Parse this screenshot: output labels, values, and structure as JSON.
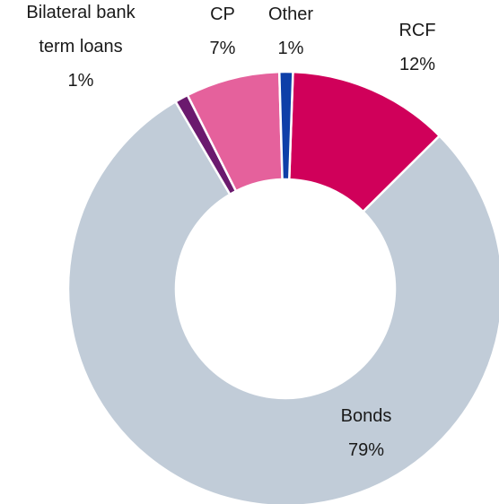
{
  "chart_data": {
    "type": "pie",
    "donut": true,
    "legend": "none",
    "slices": [
      {
        "label": [
          "RCF"
        ],
        "value": 12,
        "value_label": "12%",
        "color": "#d0005a"
      },
      {
        "label": [
          "Bonds"
        ],
        "value": 79,
        "value_label": "79%",
        "color": "#c1ccd8"
      },
      {
        "label": [
          "Bilateral bank",
          "term loans"
        ],
        "value": 1,
        "value_label": "1%",
        "color": "#6b1a6e"
      },
      {
        "label": [
          "CP"
        ],
        "value": 7,
        "value_label": "7%",
        "color": "#e5619c"
      },
      {
        "label": [
          "Other"
        ],
        "value": 1,
        "value_label": "1%",
        "color": "#0e3fa8"
      }
    ]
  }
}
